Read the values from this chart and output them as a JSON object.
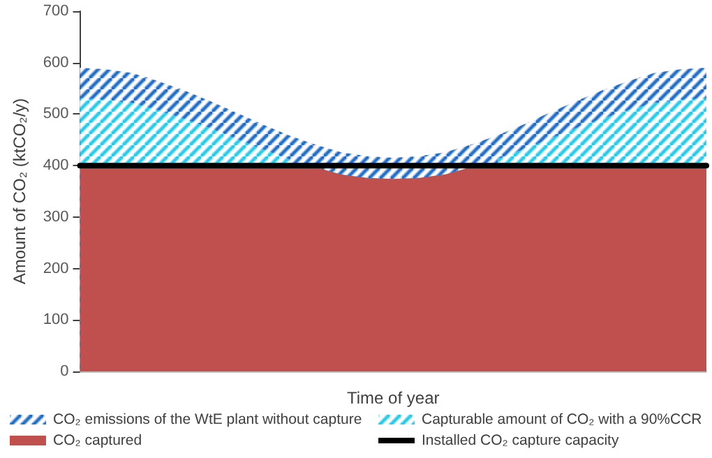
{
  "chart_data": {
    "type": "area",
    "xlabel": "Time of year",
    "ylabel": "Amount of CO₂ (ktCO₂/y)",
    "categories": [
      null,
      null,
      null,
      null,
      null,
      null,
      null,
      null,
      null,
      null,
      null,
      null,
      null,
      null,
      null,
      null,
      null,
      null,
      null,
      null,
      null,
      null,
      null,
      null,
      null
    ],
    "series": [
      {
        "name": "CO₂ emissions of the WtE plant without capture",
        "color": "#1f6bc4",
        "values": [
          590,
          587,
          580,
          564,
          546,
          525,
          503,
          480,
          459,
          441,
          426,
          418,
          415,
          418,
          426,
          441,
          459,
          480,
          503,
          525,
          546,
          564,
          580,
          587,
          590
        ]
      },
      {
        "name": "Capturable amount of CO₂ with a 90%CCR",
        "color": "#27c8e8",
        "values": [
          531,
          528,
          522,
          508,
          491,
          473,
          452,
          432,
          413,
          null,
          null,
          null,
          null,
          null,
          null,
          null,
          413,
          432,
          452,
          473,
          491,
          508,
          522,
          528,
          531
        ]
      },
      {
        "name": "CO₂ captured",
        "color": "#c0504d",
        "values": [
          400,
          400,
          400,
          400,
          400,
          400,
          400,
          400,
          400,
          397,
          383,
          376,
          374,
          376,
          383,
          397,
          400,
          400,
          400,
          400,
          400,
          400,
          400,
          400,
          400
        ]
      },
      {
        "name": "Installed CO₂ capture capacity",
        "type": "line",
        "color": "#000000",
        "values": [
          400,
          400,
          400,
          400,
          400,
          400,
          400,
          400,
          400,
          400,
          400,
          400,
          400,
          400,
          400,
          400,
          400,
          400,
          400,
          400,
          400,
          400,
          400,
          400,
          400
        ]
      }
    ],
    "ylim": [
      0,
      700
    ],
    "yticks": [
      0,
      100,
      200,
      300,
      400,
      500,
      600,
      700
    ],
    "grid": false,
    "legend": "bottom",
    "marker": "none"
  }
}
